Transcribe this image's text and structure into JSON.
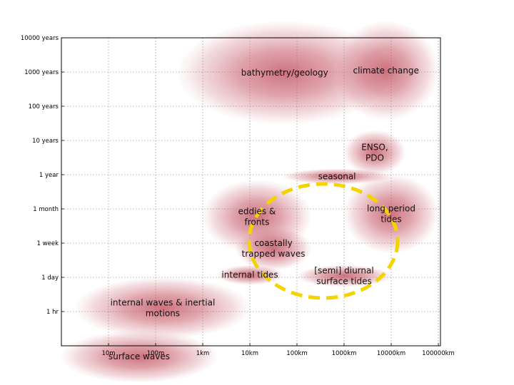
{
  "chart_data": {
    "type": "bubble-range",
    "x_scale": "log",
    "y_scale": "log",
    "x_ticks": [
      "10m",
      "100m",
      "1km",
      "10km",
      "100km",
      "1000km",
      "10000km",
      "100000km"
    ],
    "y_ticks": [
      "1 hr",
      "1 day",
      "1 week",
      "1 month",
      "1 year",
      "10 years",
      "100 years",
      "1000 years",
      "10000 years"
    ],
    "grid": true,
    "phenomena": [
      {
        "name": "bathymetry/geology",
        "x_range": [
          "300m",
          "10000km"
        ],
        "y_range": [
          "30 years",
          "30000 years"
        ]
      },
      {
        "name": "climate change",
        "x_range": [
          "600km",
          "100000km"
        ],
        "y_range": [
          "40 years",
          "30000 years"
        ]
      },
      {
        "name": "ENSO, PDO",
        "x_range": [
          "1000km",
          "20000km"
        ],
        "y_range": [
          "1 year",
          "20 years"
        ]
      },
      {
        "name": "seasonal",
        "x_range": [
          "50km",
          "10000km"
        ],
        "y_range": [
          "6 months",
          "1.5 years"
        ]
      },
      {
        "name": "long period tides",
        "x_range": [
          "1000km",
          "100000km"
        ],
        "y_range": [
          "4 days",
          "1 year"
        ]
      },
      {
        "name": "eddies & fronts",
        "x_range": [
          "1km",
          "200km"
        ],
        "y_range": [
          "4 days",
          "8 months"
        ]
      },
      {
        "name": "coastally trapped waves",
        "x_range": [
          "5km",
          "200km"
        ],
        "y_range": [
          "1.5 days",
          "2 weeks"
        ]
      },
      {
        "name": "internal tides",
        "x_range": [
          "2km",
          "50km"
        ],
        "y_range": [
          "12 hr",
          "2 days"
        ]
      },
      {
        "name": "[semi] diurnal surface tides",
        "x_range": "100km-10000km",
        "y_range": [
          "10 hr",
          "2 days"
        ]
      },
      {
        "name": "internal waves & inertial motions",
        "x_range": [
          "2m",
          "10km"
        ],
        "y_range": [
          "5 min",
          "1 day"
        ]
      },
      {
        "name": "surface waves",
        "x_range": [
          "1m",
          "2km"
        ],
        "y_range": [
          "5 s",
          "10 min"
        ]
      }
    ],
    "highlight": {
      "shape": "dashed-circle",
      "color": "#f3d300"
    }
  }
}
